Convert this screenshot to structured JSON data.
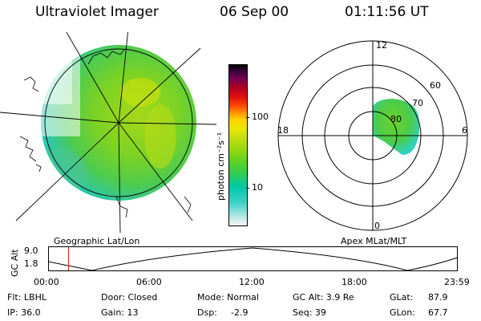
{
  "header": {
    "instrument": "Ultraviolet Imager",
    "date": "06 Sep 00",
    "time": "01:11:56 UT"
  },
  "colorbar": {
    "unit_label": "photon cm⁻²s⁻¹",
    "ticks": [
      "100",
      "10"
    ],
    "colors": [
      "#f4f4f4",
      "#bde9e5",
      "#3fd2c7",
      "#00c8a8",
      "#2ecc55",
      "#5fd21e",
      "#9ad80e",
      "#c4df10",
      "#e8e800",
      "#ffd200",
      "#ff9800",
      "#ff5000",
      "#e01010",
      "#b00020",
      "#7a0050",
      "#3a0040",
      "#000000"
    ]
  },
  "left_panel": {
    "label": "Geographic Lat/Lon",
    "image_colors": [
      "#27c8b2",
      "#52cc52",
      "#8ad51c",
      "#b4dc13",
      "#d8e60a"
    ]
  },
  "right_panel": {
    "label": "Apex MLat/MLT",
    "mlt_labels": [
      "12",
      "18",
      "6",
      "0"
    ],
    "mlat_labels": [
      "60",
      "70",
      "80"
    ]
  },
  "altitude_plot": {
    "ylabel": "GC Alt",
    "yticks": [
      "9.0",
      "1.8"
    ],
    "xticks": [
      "00:00",
      "06:00",
      "12:00",
      "18:00",
      "23:59"
    ],
    "marker_time_hours": 1.2
  },
  "info": {
    "row1": {
      "flt": "Flt: LBHL",
      "door": "Door: Closed",
      "mode": "Mode: Normal",
      "gc_alt": "GC Alt: 3.9 Re",
      "glat_label": "GLat:",
      "glat_value": "87.9"
    },
    "row2": {
      "ip": "IP: 36.0",
      "gain": "Gain: 13",
      "dsp_label": "Dsp:",
      "dsp_value": "-2.9",
      "seq": "Seq: 39",
      "glon_label": "GLon:",
      "glon_value": "67.7"
    }
  }
}
